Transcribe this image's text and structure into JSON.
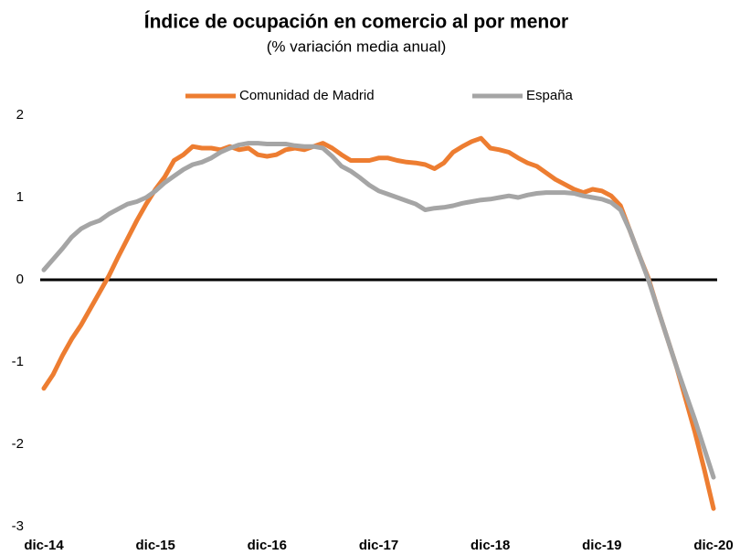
{
  "chart_data": {
    "type": "line",
    "title": "Índice de ocupación en comercio al por menor",
    "subtitle": "(% variación media anual)",
    "categories": [
      "dic-14",
      null,
      null,
      null,
      null,
      null,
      null,
      null,
      null,
      null,
      null,
      null,
      "dic-15",
      null,
      null,
      null,
      null,
      null,
      null,
      null,
      null,
      null,
      null,
      null,
      "dic-16",
      null,
      null,
      null,
      null,
      null,
      null,
      null,
      null,
      null,
      null,
      null,
      "dic-17",
      null,
      null,
      null,
      null,
      null,
      null,
      null,
      null,
      null,
      null,
      null,
      "dic-18",
      null,
      null,
      null,
      null,
      null,
      null,
      null,
      null,
      null,
      null,
      null,
      "dic-19",
      null,
      null,
      null,
      null,
      null,
      null,
      null,
      null,
      null,
      null,
      null,
      "dic-20"
    ],
    "series": [
      {
        "name": "Comunidad de Madrid",
        "color": "#ed7d31",
        "values": [
          -1.32,
          -1.15,
          -0.92,
          -0.72,
          -0.55,
          -0.35,
          -0.15,
          0.05,
          0.28,
          0.5,
          0.72,
          0.92,
          1.1,
          1.25,
          1.45,
          1.52,
          1.62,
          1.6,
          1.6,
          1.58,
          1.62,
          1.58,
          1.6,
          1.52,
          1.5,
          1.52,
          1.58,
          1.6,
          1.58,
          1.62,
          1.66,
          1.6,
          1.52,
          1.45,
          1.45,
          1.45,
          1.48,
          1.48,
          1.45,
          1.43,
          1.42,
          1.4,
          1.35,
          1.42,
          1.55,
          1.62,
          1.68,
          1.72,
          1.6,
          1.58,
          1.55,
          1.48,
          1.42,
          1.38,
          1.3,
          1.22,
          1.16,
          1.1,
          1.06,
          1.1,
          1.08,
          1.02,
          0.9,
          0.6,
          0.3,
          0.02,
          -0.35,
          -0.7,
          -1.05,
          -1.45,
          -1.85,
          -2.3,
          -2.78
        ]
      },
      {
        "name": "España",
        "color": "#a5a5a5",
        "values": [
          0.12,
          0.25,
          0.38,
          0.52,
          0.62,
          0.68,
          0.72,
          0.8,
          0.86,
          0.92,
          0.95,
          1.0,
          1.08,
          1.18,
          1.26,
          1.34,
          1.4,
          1.43,
          1.48,
          1.55,
          1.6,
          1.64,
          1.66,
          1.66,
          1.65,
          1.65,
          1.65,
          1.63,
          1.62,
          1.62,
          1.6,
          1.5,
          1.38,
          1.32,
          1.24,
          1.15,
          1.08,
          1.04,
          1.0,
          0.96,
          0.92,
          0.85,
          0.87,
          0.88,
          0.9,
          0.93,
          0.95,
          0.97,
          0.98,
          1.0,
          1.02,
          1.0,
          1.03,
          1.05,
          1.06,
          1.06,
          1.06,
          1.05,
          1.02,
          1.0,
          0.98,
          0.94,
          0.85,
          0.6,
          0.3,
          0.0,
          -0.35,
          -0.7,
          -1.05,
          -1.38,
          -1.7,
          -2.05,
          -2.4
        ]
      }
    ],
    "ylim": [
      -3,
      2
    ],
    "yticks": [
      -3,
      -2,
      -1,
      0,
      1,
      2
    ],
    "grid": false,
    "legend": "top"
  }
}
